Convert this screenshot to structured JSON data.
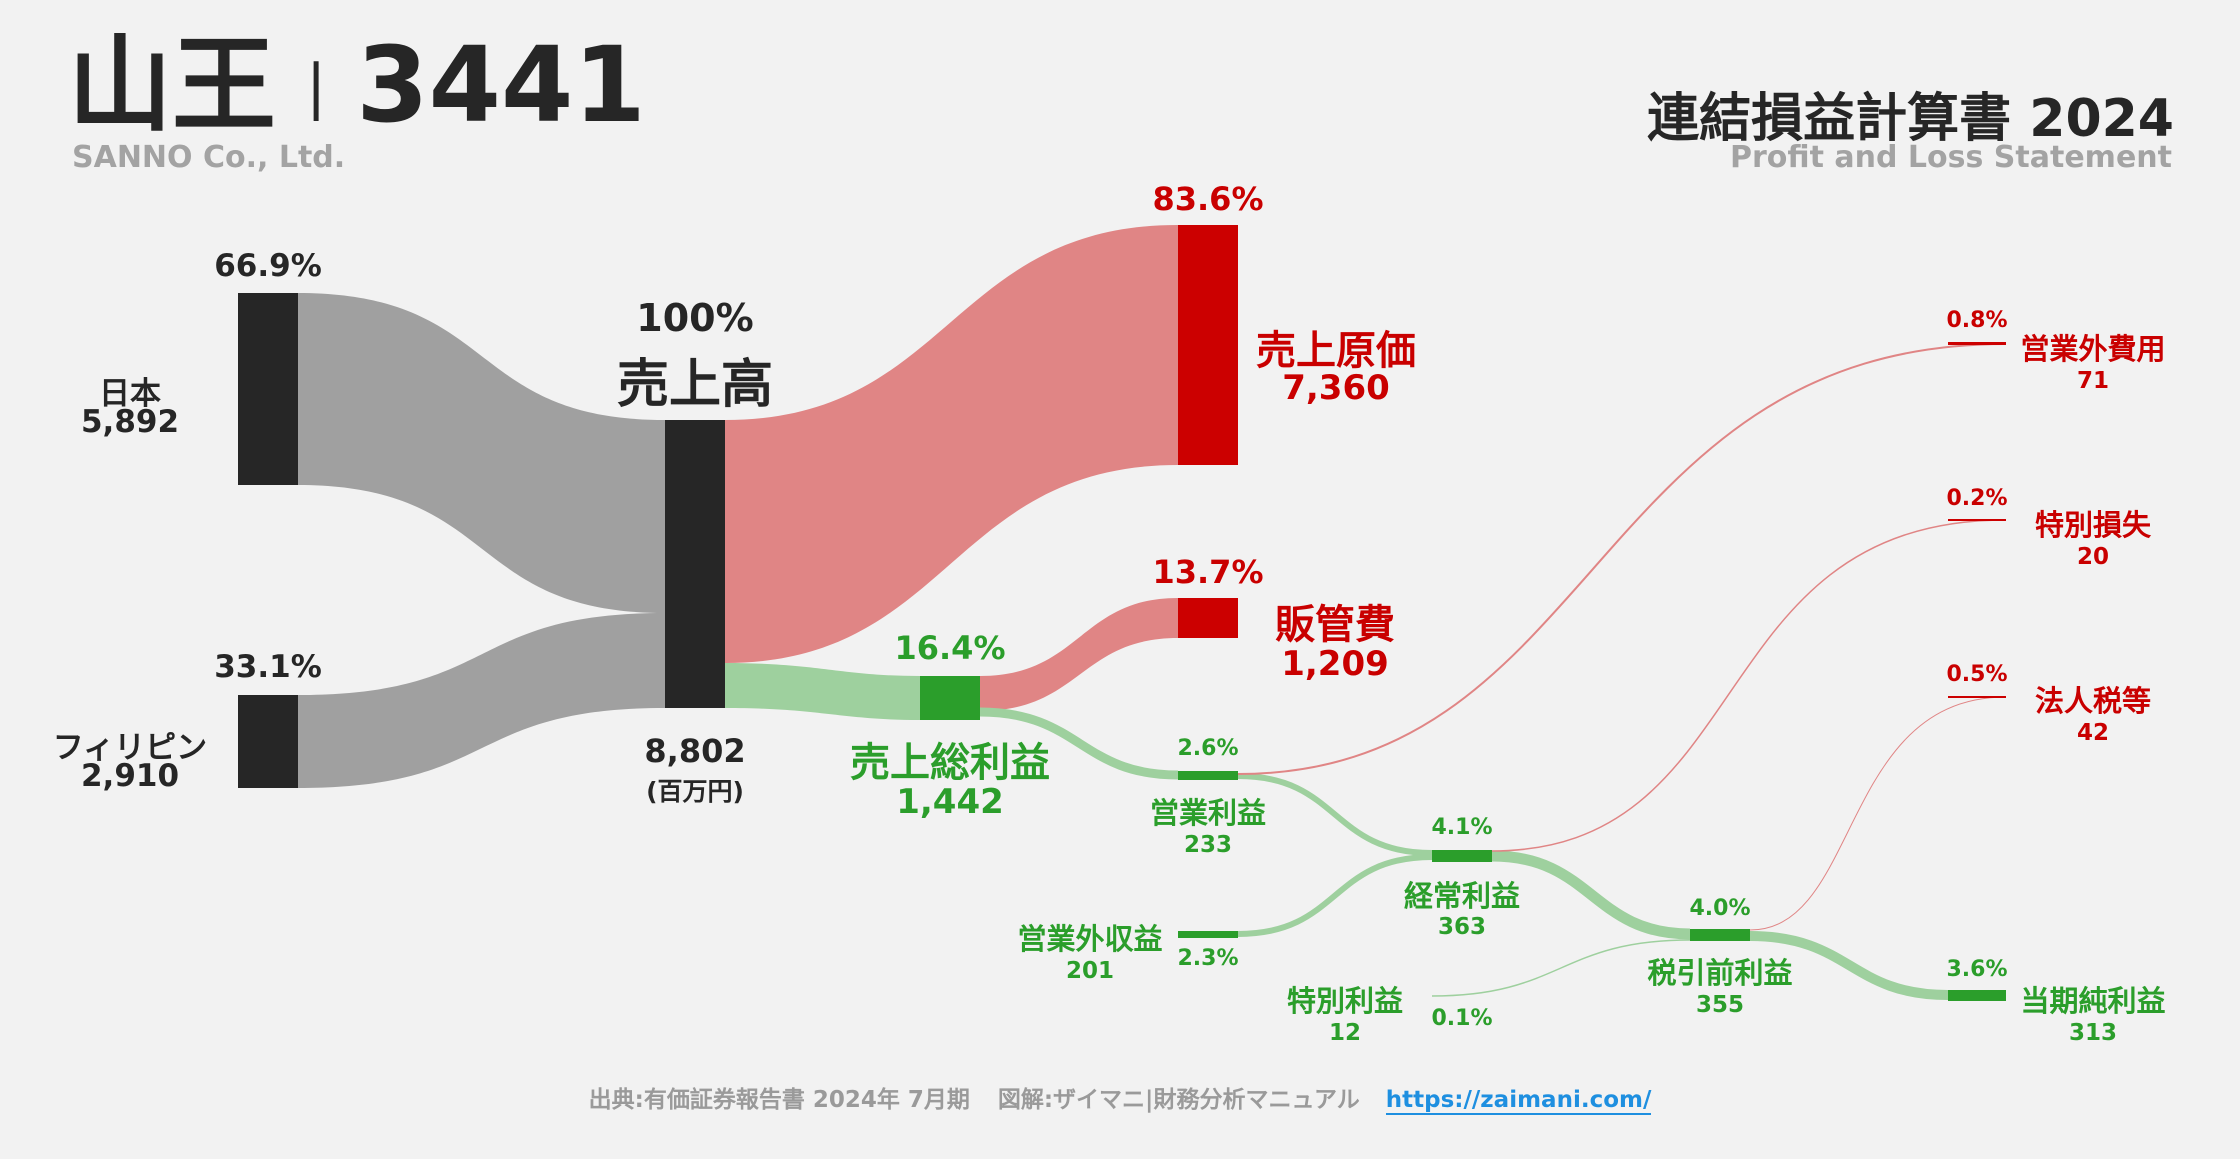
{
  "header": {
    "company_jp": "山王",
    "divider": "|",
    "ticker": "3441",
    "company_en": "SANNO Co., Ltd.",
    "statement_jp": "連結損益計算書 2024",
    "statement_en": "Profit and Loss Statement"
  },
  "flow": {
    "unit": "(百万円)",
    "nodes": {
      "japan": {
        "label": "日本",
        "value": "5,892",
        "pct": "66.9%"
      },
      "philippines": {
        "label": "フィリピン",
        "value": "2,910",
        "pct": "33.1%"
      },
      "revenue": {
        "label": "売上高",
        "value": "8,802",
        "pct": "100%"
      },
      "cogs": {
        "label": "売上原価",
        "value": "7,360",
        "pct": "83.6%"
      },
      "sga": {
        "label": "販管費",
        "value": "1,209",
        "pct": "13.7%"
      },
      "gross_profit": {
        "label": "売上総利益",
        "value": "1,442",
        "pct": "16.4%"
      },
      "operating_income": {
        "label": "営業利益",
        "value": "233",
        "pct": "2.6%"
      },
      "non_op_income": {
        "label": "営業外収益",
        "value": "201",
        "pct": "2.3%"
      },
      "ordinary_income": {
        "label": "経常利益",
        "value": "363",
        "pct": "4.1%"
      },
      "extraordinary_income": {
        "label": "特別利益",
        "value": "12",
        "pct": "0.1%"
      },
      "pretax_income": {
        "label": "税引前利益",
        "value": "355",
        "pct": "4.0%"
      },
      "non_op_expense": {
        "label": "営業外費用",
        "value": "71",
        "pct": "0.8%"
      },
      "extraordinary_loss": {
        "label": "特別損失",
        "value": "20",
        "pct": "0.2%"
      },
      "income_tax": {
        "label": "法人税等",
        "value": "42",
        "pct": "0.5%"
      },
      "net_income": {
        "label": "当期純利益",
        "value": "313",
        "pct": "3.6%"
      }
    }
  },
  "colors": {
    "node_dark": "#262626",
    "flow_gray": "#a0a0a0",
    "cost_red": "#cc0000",
    "flow_red": "#e08585",
    "profit_green": "#2b9e2b",
    "flow_green": "#9ed09e"
  },
  "footer": {
    "source": "出典:有価証券報告書 2024年 7月期",
    "credit": "図解:ザイマニ|財務分析マニュアル",
    "url": "https://zaimani.com/"
  }
}
